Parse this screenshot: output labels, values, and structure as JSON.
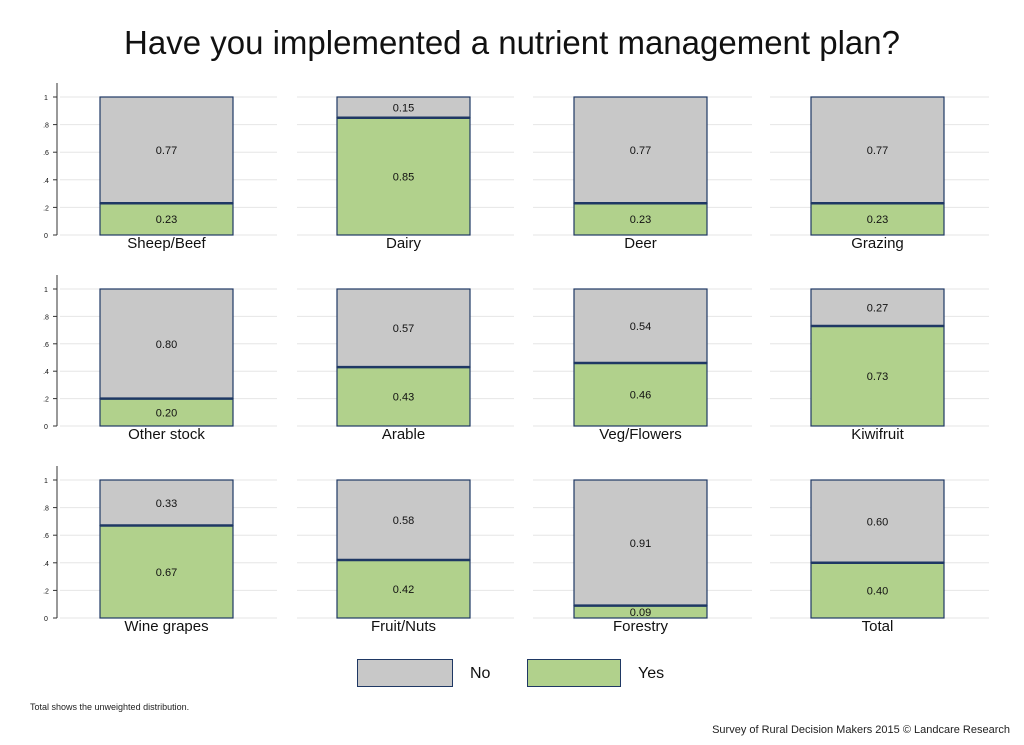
{
  "title": "Have you implemented a nutrient management plan?",
  "colors": {
    "no": "#c8c8c8",
    "yes": "#b1d18c",
    "border": "#1f3864",
    "grid": "#e6e6e6"
  },
  "legend": {
    "no": "No",
    "yes": "Yes"
  },
  "note": "Total shows the unweighted distribution.",
  "credit": "Survey of Rural Decision Makers 2015 © Landcare Research",
  "chart_data": {
    "type": "bar",
    "stacked": true,
    "ylim": [
      0,
      1
    ],
    "yticks": [
      "0",
      ".2",
      ".4",
      ".6",
      ".8",
      "1"
    ],
    "grid": true,
    "legend_position": "bottom",
    "categories": [
      "Sheep/Beef",
      "Dairy",
      "Deer",
      "Grazing",
      "Other stock",
      "Arable",
      "Veg/Flowers",
      "Kiwifruit",
      "Wine grapes",
      "Fruit/Nuts",
      "Forestry",
      "Total"
    ],
    "series": [
      {
        "name": "Yes",
        "values": [
          0.23,
          0.85,
          0.23,
          0.23,
          0.2,
          0.43,
          0.46,
          0.73,
          0.67,
          0.42,
          0.09,
          0.4
        ],
        "labels": [
          "0.23",
          "0.85",
          "0.23",
          "0.23",
          "0.20",
          "0.43",
          "0.46",
          "0.73",
          "0.67",
          "0.42",
          "0.09",
          "0.40"
        ]
      },
      {
        "name": "No",
        "values": [
          0.77,
          0.15,
          0.77,
          0.77,
          0.8,
          0.57,
          0.54,
          0.27,
          0.33,
          0.58,
          0.91,
          0.6
        ],
        "labels": [
          "0.77",
          "0.15",
          "0.77",
          "0.77",
          "0.80",
          "0.57",
          "0.54",
          "0.27",
          "0.33",
          "0.58",
          "0.91",
          "0.60"
        ]
      }
    ]
  }
}
